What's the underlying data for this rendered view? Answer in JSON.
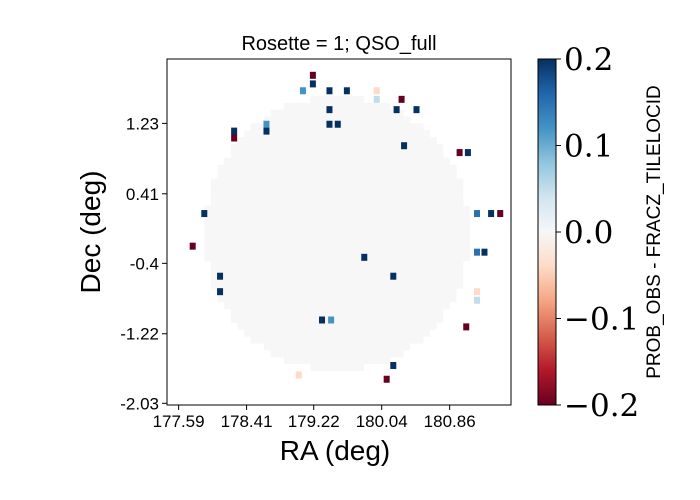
{
  "chart_data": {
    "type": "heatmap",
    "title": "Rosette = 1; QSO_full",
    "xlabel": "RA (deg)",
    "ylabel": "Dec (deg)",
    "xlim": [
      177.45,
      181.6
    ],
    "ylim": [
      -2.05,
      1.98
    ],
    "xticks": [
      177.59,
      178.41,
      179.22,
      180.04,
      180.86
    ],
    "xtick_labels": [
      "177.59",
      "178.41",
      "179.22",
      "180.04",
      "180.86"
    ],
    "yticks": [
      1.23,
      0.41,
      -0.4,
      -1.22,
      -2.03
    ],
    "ytick_labels": [
      "1.23",
      "0.41",
      "-0.4",
      "-1.22",
      "-2.03"
    ],
    "footprint": {
      "shape": "circle",
      "center_ra": 179.5,
      "center_dec": -0.05,
      "radius_deg": 1.6,
      "value": 0.0
    },
    "cell_size_deg": 0.08,
    "highlighted_cells": [
      {
        "ra": 179.21,
        "dec": 1.79,
        "value": -0.2
      },
      {
        "ra": 179.21,
        "dec": 1.69,
        "value": 0.2
      },
      {
        "ra": 179.09,
        "dec": 1.61,
        "value": 0.12
      },
      {
        "ra": 179.41,
        "dec": 1.61,
        "value": 0.2
      },
      {
        "ra": 179.62,
        "dec": 1.61,
        "value": 0.2
      },
      {
        "ra": 179.98,
        "dec": 1.61,
        "value": -0.04
      },
      {
        "ra": 179.98,
        "dec": 1.51,
        "value": 0.05
      },
      {
        "ra": 180.28,
        "dec": 1.51,
        "value": -0.2
      },
      {
        "ra": 180.22,
        "dec": 1.39,
        "value": 0.2
      },
      {
        "ra": 180.46,
        "dec": 1.39,
        "value": 0.2
      },
      {
        "ra": 179.41,
        "dec": 1.39,
        "value": 0.2
      },
      {
        "ra": 179.41,
        "dec": 1.22,
        "value": 0.2
      },
      {
        "ra": 179.51,
        "dec": 1.22,
        "value": 0.2
      },
      {
        "ra": 178.65,
        "dec": 1.22,
        "value": 0.12
      },
      {
        "ra": 178.65,
        "dec": 1.14,
        "value": 0.2
      },
      {
        "ra": 178.26,
        "dec": 1.14,
        "value": 0.2
      },
      {
        "ra": 178.26,
        "dec": 1.06,
        "value": -0.2
      },
      {
        "ra": 180.31,
        "dec": 0.97,
        "value": 0.2
      },
      {
        "ra": 180.98,
        "dec": 0.89,
        "value": -0.2
      },
      {
        "ra": 181.08,
        "dec": 0.89,
        "value": 0.2
      },
      {
        "ra": 177.9,
        "dec": 0.18,
        "value": 0.2
      },
      {
        "ra": 181.19,
        "dec": 0.18,
        "value": 0.15
      },
      {
        "ra": 181.36,
        "dec": 0.18,
        "value": 0.2
      },
      {
        "ra": 181.47,
        "dec": 0.18,
        "value": -0.2
      },
      {
        "ra": 177.76,
        "dec": -0.2,
        "value": -0.2
      },
      {
        "ra": 181.19,
        "dec": -0.27,
        "value": 0.15
      },
      {
        "ra": 181.28,
        "dec": -0.27,
        "value": 0.2
      },
      {
        "ra": 179.83,
        "dec": -0.33,
        "value": 0.2
      },
      {
        "ra": 178.09,
        "dec": -0.55,
        "value": 0.2
      },
      {
        "ra": 180.18,
        "dec": -0.55,
        "value": 0.2
      },
      {
        "ra": 178.09,
        "dec": -0.73,
        "value": 0.2
      },
      {
        "ra": 181.19,
        "dec": -0.73,
        "value": -0.04
      },
      {
        "ra": 181.19,
        "dec": -0.83,
        "value": 0.05
      },
      {
        "ra": 179.32,
        "dec": -1.06,
        "value": 0.2
      },
      {
        "ra": 179.43,
        "dec": -1.06,
        "value": 0.12
      },
      {
        "ra": 181.06,
        "dec": -1.14,
        "value": -0.2
      },
      {
        "ra": 180.18,
        "dec": -1.59,
        "value": 0.2
      },
      {
        "ra": 179.04,
        "dec": -1.7,
        "value": -0.04
      },
      {
        "ra": 180.1,
        "dec": -1.75,
        "value": -0.2
      }
    ],
    "colorbar": {
      "label": "PROB_OBS - FRACZ_TILELOCID",
      "min": -0.2,
      "max": 0.2,
      "ticks": [
        0.2,
        0.1,
        0.0,
        -0.1,
        -0.2
      ],
      "tick_labels": [
        "0.2",
        "0.1",
        "0.0",
        "−0.1",
        "−0.2"
      ],
      "colormap": "RdBu",
      "stops": [
        "#67001f",
        "#b2182b",
        "#d6604d",
        "#f4a582",
        "#fddbc7",
        "#f7f7f7",
        "#d1e5f0",
        "#92c5de",
        "#4393c3",
        "#2166ac",
        "#053061"
      ]
    }
  }
}
